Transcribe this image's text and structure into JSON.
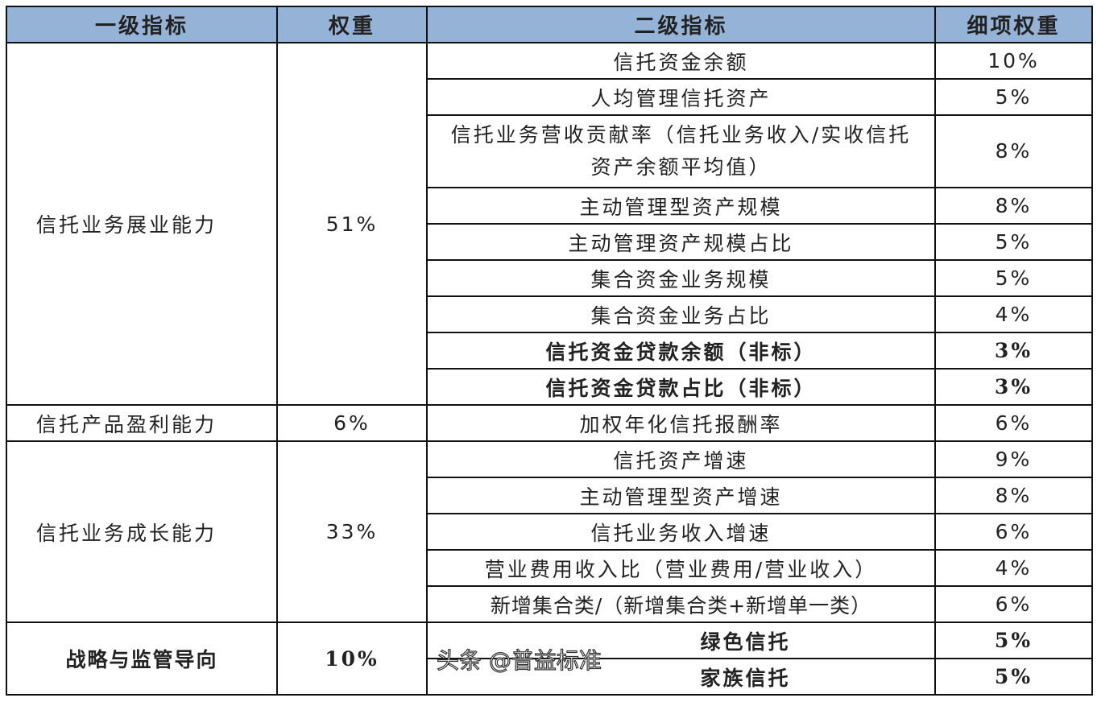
{
  "header": [
    "一级指标",
    "权重",
    "二级指标",
    "细项权重"
  ],
  "groups": [
    {
      "name": "信托业务展业能力",
      "weight": "51%",
      "items": [
        {
          "name": "信托资金余额",
          "weight": "10%"
        },
        {
          "name": "人均管理信托资产",
          "weight": "5%"
        },
        {
          "name": "信托业务营收贡献率（信托业务收入/实收信托资产余额平均值）",
          "weight": "8%"
        },
        {
          "name": "主动管理型资产规模",
          "weight": "8%"
        },
        {
          "name": "主动管理资产规模占比",
          "weight": "5%"
        },
        {
          "name": "集合资金业务规模",
          "weight": "5%"
        },
        {
          "name": "集合资金业务占比",
          "weight": "4%"
        },
        {
          "name": "信托资金贷款余额（非标）",
          "weight": "3%"
        },
        {
          "name": "信托资金贷款占比（非标）",
          "weight": "3%"
        }
      ]
    },
    {
      "name": "信托产品盈利能力",
      "weight": "6%",
      "items": [
        {
          "name": "加权年化信托报酬率",
          "weight": "6%"
        }
      ]
    },
    {
      "name": "信托业务成长能力",
      "weight": "33%",
      "items": [
        {
          "name": "信托资产增速",
          "weight": "9%"
        },
        {
          "name": "主动管理型资产增速",
          "weight": "8%"
        },
        {
          "name": "信托业务收入增速",
          "weight": "6%"
        },
        {
          "name": "营业费用收入比（营业费用/营业收入）",
          "weight": "4%"
        },
        {
          "name": "新增集合类/（新增集合类+新增单一类）",
          "weight": "6%"
        }
      ]
    },
    {
      "name": "战略与监管导向",
      "weight": "10%",
      "items": [
        {
          "name": "绿色信托",
          "weight": "5%"
        },
        {
          "name": "家族信托",
          "weight": "5%"
        }
      ]
    }
  ],
  "watermark": "头条 @普益标准",
  "colors": {
    "header_bg": "#95b3d7"
  }
}
